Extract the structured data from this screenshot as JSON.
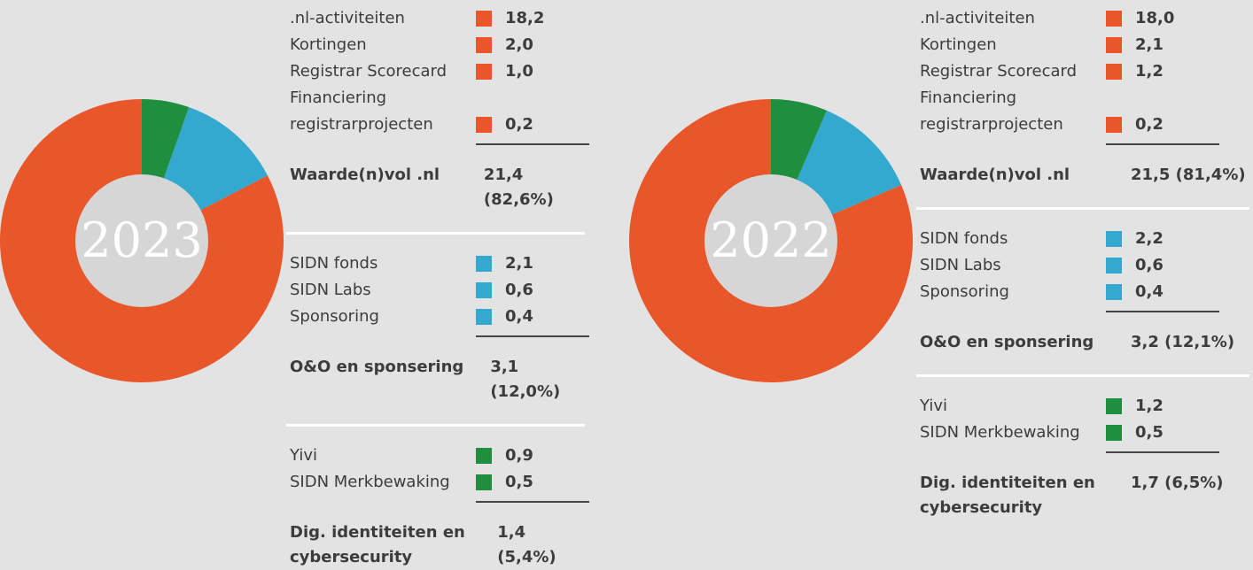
{
  "chart_data": [
    {
      "type": "pie",
      "center_label": "2023",
      "groups": [
        {
          "name": "Waarde(n)vol .nl",
          "color": "#e8562a",
          "categories": [
            ".nl-activiteiten",
            "Kortingen",
            "Registrar Scorecard",
            "Financiering registrarprojecten"
          ],
          "values": [
            18.2,
            2.0,
            1.0,
            0.2
          ],
          "value_labels": [
            "18,2",
            "2,0",
            "1,0",
            "0,2"
          ],
          "total": 21.4,
          "share": 82.6,
          "total_label": "21,4 (82,6%)"
        },
        {
          "name": "O&O en sponsering",
          "color": "#33a9cf",
          "categories": [
            "SIDN fonds",
            "SIDN Labs",
            "Sponsoring"
          ],
          "values": [
            2.1,
            0.6,
            0.4
          ],
          "value_labels": [
            "2,1",
            "0,6",
            "0,4"
          ],
          "total": 3.1,
          "share": 12.0,
          "total_label": "3,1 (12,0%)"
        },
        {
          "name": "Dig. identiteiten en cybersecurity",
          "color": "#1f8f3f",
          "categories": [
            "Yivi",
            "SIDN Merkbewaking"
          ],
          "values": [
            0.9,
            0.5
          ],
          "value_labels": [
            "0,9",
            "0,5"
          ],
          "total": 1.4,
          "share": 5.4,
          "total_label": "1,4 (5,4%)"
        }
      ]
    },
    {
      "type": "pie",
      "center_label": "2022",
      "groups": [
        {
          "name": "Waarde(n)vol .nl",
          "color": "#e8562a",
          "categories": [
            ".nl-activiteiten",
            "Kortingen",
            "Registrar Scorecard",
            "Financiering registrarprojecten"
          ],
          "values": [
            18.0,
            2.1,
            1.2,
            0.2
          ],
          "value_labels": [
            "18,0",
            "2,1",
            "1,2",
            "0,2"
          ],
          "total": 21.5,
          "share": 81.4,
          "total_label": "21,5 (81,4%)"
        },
        {
          "name": "O&O en sponsering",
          "color": "#33a9cf",
          "categories": [
            "SIDN fonds",
            "SIDN Labs",
            "Sponsoring"
          ],
          "values": [
            2.2,
            0.6,
            0.4
          ],
          "value_labels": [
            "2,2",
            "0,6",
            "0,4"
          ],
          "total": 3.2,
          "share": 12.1,
          "total_label": "3,2 (12,1%)"
        },
        {
          "name": "Dig. identiteiten en cybersecurity",
          "color": "#1f8f3f",
          "categories": [
            "Yivi",
            "SIDN Merkbewaking"
          ],
          "values": [
            1.2,
            0.5
          ],
          "value_labels": [
            "1,2",
            "0,5"
          ],
          "total": 1.7,
          "share": 6.5,
          "total_label": "1,7 (6,5%)"
        }
      ]
    }
  ]
}
